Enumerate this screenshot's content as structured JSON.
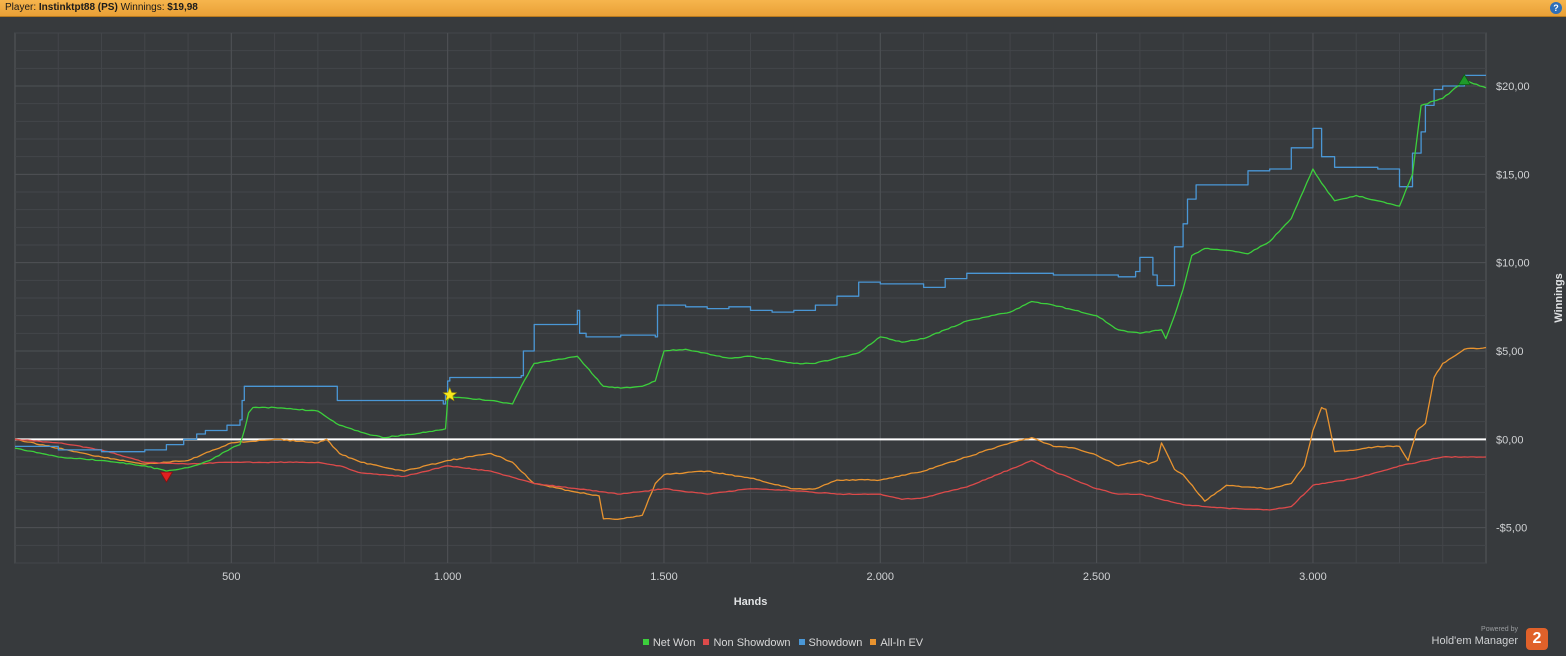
{
  "header": {
    "player_label": "Player:",
    "player_name": "Instinktpt88 (PS)",
    "winnings_label": "Winnings:",
    "winnings_value": "$19,98"
  },
  "colors": {
    "net_won": "#3ccf3c",
    "non_showdown": "#dc4a4a",
    "showdown": "#4a97d6",
    "allin_ev": "#e8932f",
    "zero_line": "#ffffff",
    "grid": "#4e5155"
  },
  "brand": {
    "powered_by": "Powered by",
    "product": "Hold'em Manager",
    "badge": "2"
  },
  "chart_data": {
    "type": "line",
    "xlabel": "Hands",
    "ylabel": "Winnings",
    "xlim": [
      0,
      3400
    ],
    "ylim": [
      -7,
      23
    ],
    "x_ticks": [
      500,
      1000,
      1500,
      2000,
      2500,
      3000
    ],
    "x_tick_labels": [
      "500",
      "1.000",
      "1.500",
      "2.000",
      "2.500",
      "3.000"
    ],
    "y_ticks": [
      -5,
      0,
      5,
      10,
      15,
      20
    ],
    "y_tick_labels": [
      "-$5,00",
      "$0,00",
      "$5,00",
      "$10,00",
      "$15,00",
      "$20,00"
    ],
    "grid": true,
    "legend_position": "bottom-center",
    "series": [
      {
        "name": "Net Won",
        "key": "net_won",
        "x": [
          0,
          100,
          200,
          300,
          350,
          400,
          450,
          500,
          520,
          530,
          540,
          550,
          600,
          700,
          750,
          800,
          850,
          950,
          995,
          1000,
          1005,
          1100,
          1150,
          1170,
          1200,
          1250,
          1300,
          1360,
          1400,
          1450,
          1480,
          1500,
          1550,
          1650,
          1700,
          1800,
          1850,
          1950,
          2000,
          2050,
          2100,
          2200,
          2300,
          2350,
          2400,
          2450,
          2500,
          2550,
          2600,
          2650,
          2660,
          2680,
          2700,
          2720,
          2750,
          2800,
          2850,
          2900,
          2950,
          3000,
          3020,
          3050,
          3100,
          3150,
          3200,
          3230,
          3250,
          3300,
          3350,
          3400
        ],
        "y": [
          -0.5,
          -1.0,
          -1.2,
          -1.5,
          -1.8,
          -1.6,
          -1.2,
          -0.5,
          -0.3,
          0.5,
          1.5,
          1.8,
          1.8,
          1.6,
          0.8,
          0.4,
          0.1,
          0.4,
          0.6,
          2.2,
          2.4,
          2.2,
          2.0,
          3.0,
          4.3,
          4.5,
          4.7,
          3.0,
          2.9,
          3.0,
          3.3,
          5.0,
          5.1,
          4.6,
          4.7,
          4.3,
          4.3,
          4.9,
          5.8,
          5.5,
          5.7,
          6.7,
          7.2,
          7.8,
          7.6,
          7.3,
          7.0,
          6.2,
          6.0,
          6.2,
          5.7,
          7.0,
          8.5,
          10.4,
          10.8,
          10.7,
          10.5,
          11.2,
          12.5,
          15.3,
          14.5,
          13.5,
          13.8,
          13.5,
          13.2,
          15.0,
          18.9,
          19.3,
          20.3,
          19.9
        ]
      },
      {
        "name": "Non Showdown",
        "key": "non_showdown",
        "x": [
          0,
          100,
          200,
          300,
          400,
          500,
          600,
          700,
          750,
          800,
          900,
          1000,
          1100,
          1200,
          1300,
          1400,
          1500,
          1600,
          1700,
          1800,
          1900,
          2000,
          2050,
          2100,
          2200,
          2300,
          2350,
          2400,
          2500,
          2550,
          2600,
          2700,
          2800,
          2900,
          2950,
          3000,
          3100,
          3200,
          3300,
          3400
        ],
        "y": [
          0,
          -0.2,
          -0.6,
          -1.3,
          -1.4,
          -1.3,
          -1.3,
          -1.3,
          -1.5,
          -1.9,
          -2.1,
          -1.5,
          -1.8,
          -2.5,
          -2.8,
          -3.1,
          -2.8,
          -3.1,
          -2.8,
          -2.9,
          -3.1,
          -3.1,
          -3.4,
          -3.3,
          -2.7,
          -1.7,
          -1.2,
          -1.8,
          -2.8,
          -3.1,
          -3.1,
          -3.7,
          -3.9,
          -4.0,
          -3.8,
          -2.6,
          -2.2,
          -1.5,
          -1.0,
          -1.0
        ]
      },
      {
        "name": "Showdown",
        "key": "showdown",
        "x": [
          0,
          100,
          200,
          300,
          350,
          390,
          420,
          440,
          490,
          520,
          525,
          530,
          700,
          740,
          745,
          990,
          995,
          1000,
          1005,
          1100,
          1170,
          1175,
          1200,
          1300,
          1305,
          1320,
          1380,
          1400,
          1480,
          1485,
          1550,
          1600,
          1650,
          1700,
          1750,
          1800,
          1850,
          1900,
          1950,
          2000,
          2100,
          2150,
          2200,
          2300,
          2400,
          2500,
          2550,
          2590,
          2600,
          2630,
          2640,
          2680,
          2700,
          2710,
          2730,
          2800,
          2850,
          2900,
          2950,
          3000,
          3020,
          3050,
          3100,
          3150,
          3200,
          3230,
          3250,
          3260,
          3280,
          3300,
          3350,
          3400
        ],
        "y": [
          -0.4,
          -0.6,
          -0.7,
          -0.6,
          -0.3,
          0.0,
          0.3,
          0.5,
          0.8,
          1.1,
          2.2,
          3.0,
          3.0,
          3.0,
          2.2,
          2.0,
          2.5,
          3.3,
          3.5,
          3.5,
          3.6,
          5.0,
          6.5,
          7.3,
          6.0,
          5.8,
          5.8,
          5.9,
          5.8,
          7.6,
          7.5,
          7.4,
          7.5,
          7.3,
          7.2,
          7.3,
          7.6,
          8.1,
          8.9,
          8.8,
          8.6,
          9.1,
          9.4,
          9.4,
          9.3,
          9.3,
          9.2,
          9.5,
          10.3,
          9.3,
          8.7,
          10.9,
          12.2,
          13.6,
          14.4,
          14.4,
          15.2,
          15.3,
          16.5,
          17.6,
          16.0,
          15.4,
          15.4,
          15.3,
          14.3,
          16.2,
          17.4,
          18.9,
          19.8,
          20.0,
          20.6,
          20.6
        ]
      },
      {
        "name": "All-In EV",
        "key": "allin_ev",
        "x": [
          0,
          100,
          200,
          300,
          400,
          500,
          600,
          700,
          720,
          750,
          800,
          900,
          1000,
          1100,
          1150,
          1200,
          1300,
          1350,
          1360,
          1400,
          1450,
          1480,
          1500,
          1600,
          1700,
          1800,
          1850,
          1900,
          2000,
          2100,
          2200,
          2300,
          2350,
          2400,
          2450,
          2500,
          2550,
          2600,
          2620,
          2640,
          2650,
          2680,
          2700,
          2750,
          2800,
          2850,
          2900,
          2950,
          2980,
          3000,
          3020,
          3030,
          3050,
          3100,
          3150,
          3200,
          3220,
          3240,
          3260,
          3280,
          3300,
          3350,
          3400
        ],
        "y": [
          0,
          -0.5,
          -1.0,
          -1.4,
          -1.2,
          -0.2,
          0.0,
          -0.2,
          0.0,
          -0.8,
          -1.3,
          -1.8,
          -1.2,
          -0.8,
          -1.3,
          -2.5,
          -3.0,
          -3.2,
          -4.5,
          -4.5,
          -4.3,
          -2.5,
          -2.0,
          -1.8,
          -2.2,
          -2.8,
          -2.8,
          -2.3,
          -2.3,
          -1.8,
          -1.0,
          -0.2,
          0.1,
          -0.4,
          -0.5,
          -0.9,
          -1.5,
          -1.2,
          -1.4,
          -1.2,
          -0.2,
          -1.7,
          -2.0,
          -3.5,
          -2.6,
          -2.7,
          -2.8,
          -2.5,
          -1.5,
          0.5,
          1.8,
          1.7,
          -0.7,
          -0.6,
          -0.4,
          -0.4,
          -1.2,
          0.5,
          0.9,
          3.5,
          4.3,
          5.1,
          5.2
        ]
      }
    ]
  }
}
